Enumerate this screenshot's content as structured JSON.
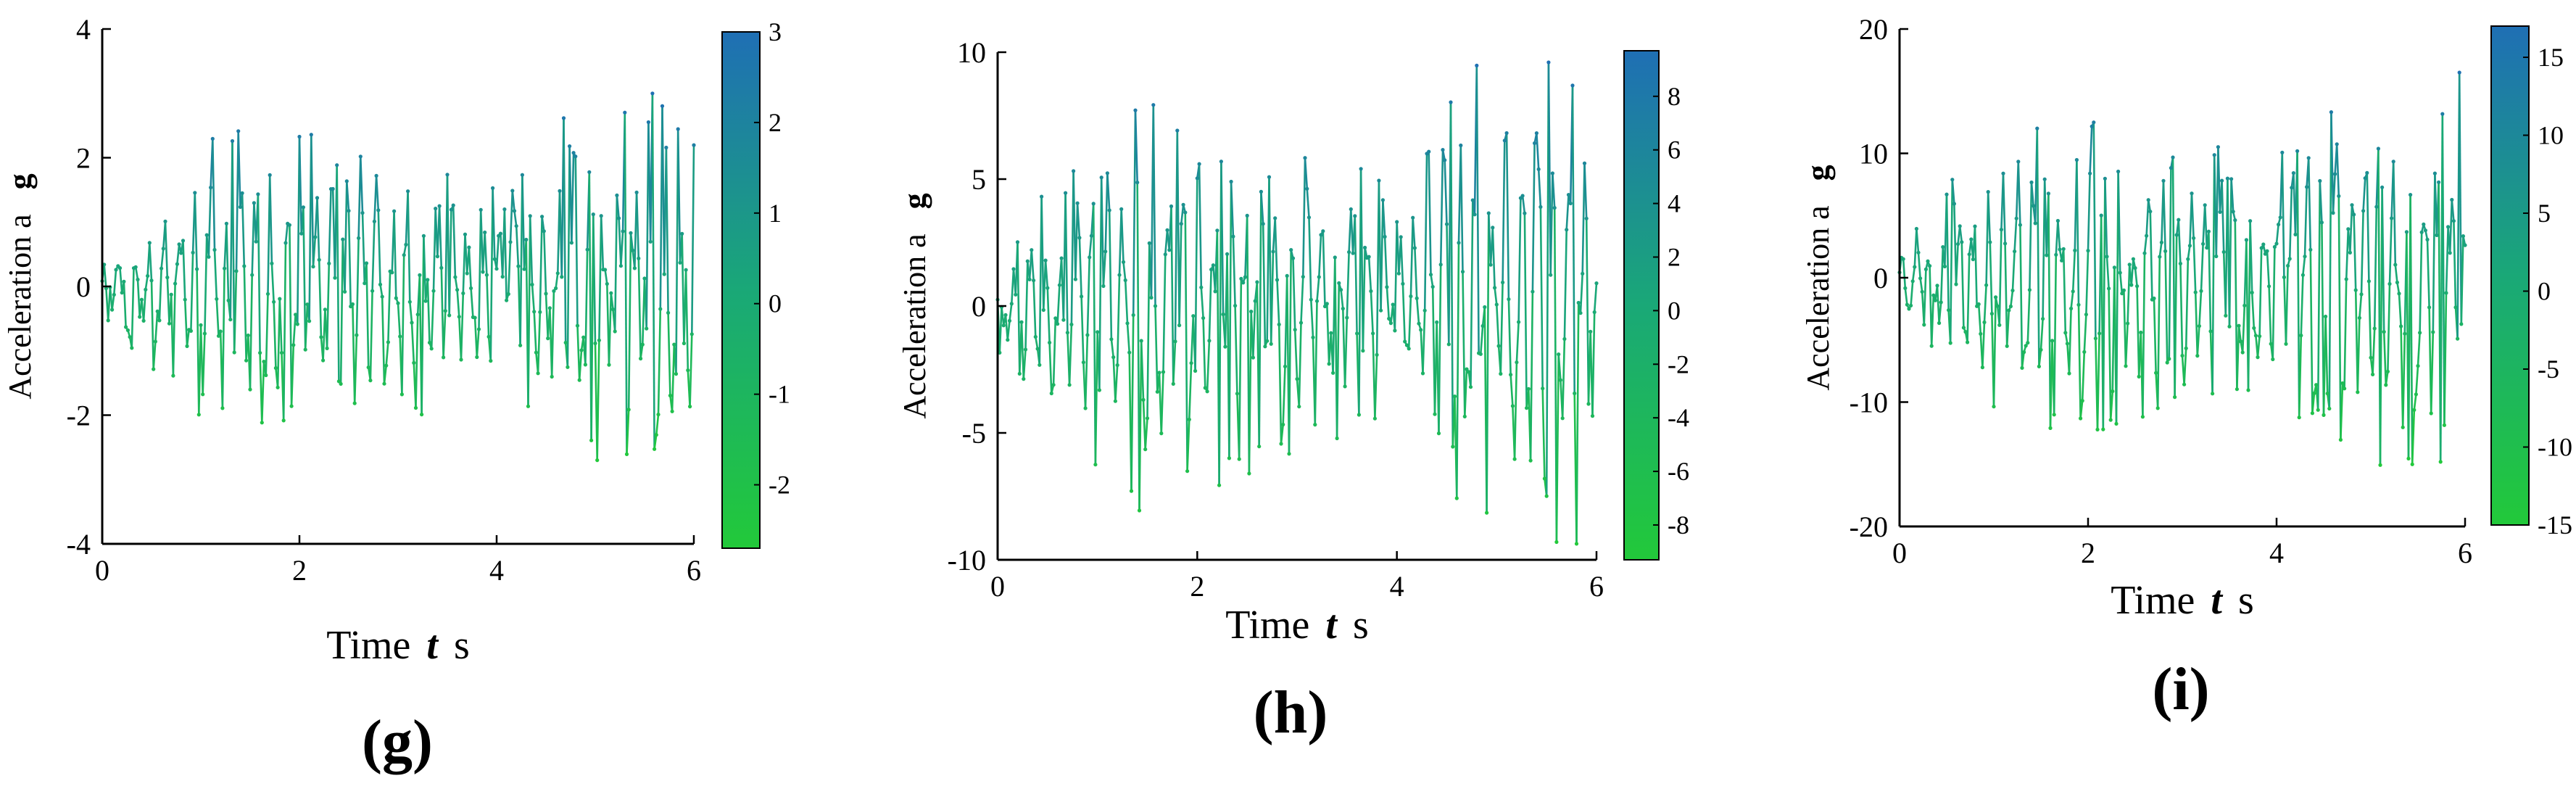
{
  "colors": {
    "colormap_low": "#22c93a",
    "colormap_mid": "#1aa877",
    "colormap_high": "#1f6fb4",
    "axis": "#000000",
    "background": "#ffffff"
  },
  "chart_data": [
    {
      "type": "line",
      "panel_label": "(g)",
      "title": "",
      "xlabel": {
        "main": "Time",
        "var": "t",
        "unit": "s"
      },
      "ylabel": {
        "main": "Acceleration a",
        "unit": "g"
      },
      "xlim": [
        0,
        6
      ],
      "ylim": [
        -4,
        4
      ],
      "xticks": [
        0,
        2,
        4,
        6
      ],
      "yticks": [
        -4,
        -2,
        0,
        2,
        4
      ],
      "ytick_labels": [
        "-4",
        "-2",
        "0",
        "2",
        "4"
      ],
      "colorbar": {
        "range": [
          -2.7,
          3
        ],
        "ticks": [
          -2,
          -1,
          0,
          1,
          2,
          3
        ],
        "tick_labels": [
          "-2",
          "-1",
          "0",
          "1",
          "2",
          "3"
        ]
      },
      "series": [
        {
          "name": "acceleration",
          "seed": 7,
          "dt": 0.02,
          "amplitude_envelope": [
            [
              0,
              0.5
            ],
            [
              0.5,
              1.1
            ],
            [
              1.2,
              2.0
            ],
            [
              3.0,
              1.8
            ],
            [
              4.0,
              1.2
            ],
            [
              5.0,
              2.6
            ],
            [
              6.0,
              2.6
            ]
          ],
          "peak_max": 3.0,
          "trough_min": -2.7
        }
      ]
    },
    {
      "type": "line",
      "panel_label": "(h)",
      "title": "",
      "xlabel": {
        "main": "Time",
        "var": "t",
        "unit": "s"
      },
      "ylabel": {
        "main": "Acceleration a",
        "unit": "g"
      },
      "xlim": [
        0,
        6
      ],
      "ylim": [
        -10,
        10
      ],
      "xticks": [
        0,
        2,
        4,
        6
      ],
      "yticks": [
        -10,
        -5,
        0,
        5,
        10
      ],
      "ytick_labels": [
        "-10",
        "-5",
        "0",
        "5",
        "10"
      ],
      "colorbar": {
        "range": [
          -9.3,
          9.7
        ],
        "ticks": [
          -8,
          -6,
          -4,
          -2,
          0,
          2,
          4,
          6,
          8
        ],
        "tick_labels": [
          "-8",
          "-6",
          "-4",
          "-2",
          "0",
          "2",
          "4",
          "6",
          "8"
        ]
      },
      "series": [
        {
          "name": "acceleration",
          "seed": 11,
          "dt": 0.02,
          "amplitude_envelope": [
            [
              0,
              1.5
            ],
            [
              0.5,
              4.0
            ],
            [
              1.4,
              6.5
            ],
            [
              3.0,
              5.0
            ],
            [
              4.0,
              4.5
            ],
            [
              5.0,
              8.5
            ],
            [
              6.0,
              8.0
            ]
          ],
          "peak_max": 9.6,
          "trough_min": -9.3
        }
      ]
    },
    {
      "type": "line",
      "panel_label": "(i)",
      "title": "",
      "xlabel": {
        "main": "Time",
        "var": "t",
        "unit": "s"
      },
      "ylabel": {
        "main": "Acceleration a",
        "unit": "g"
      },
      "xlim": [
        0,
        6
      ],
      "ylim": [
        -20,
        20
      ],
      "xticks": [
        0,
        2,
        4,
        6
      ],
      "yticks": [
        -20,
        -10,
        0,
        10,
        20
      ],
      "ytick_labels": [
        "-20",
        "-10",
        "0",
        "10",
        "20"
      ],
      "colorbar": {
        "range": [
          -15,
          17
        ],
        "ticks": [
          -15,
          -10,
          -5,
          0,
          5,
          10,
          15
        ],
        "tick_labels": [
          "-15",
          "-10",
          "-5",
          "0",
          "5",
          "10",
          "15"
        ]
      },
      "series": [
        {
          "name": "acceleration",
          "seed": 23,
          "dt": 0.02,
          "amplitude_envelope": [
            [
              0,
              2.5
            ],
            [
              0.5,
              6.0
            ],
            [
              1.2,
              11.0
            ],
            [
              3.0,
              9.0
            ],
            [
              4.0,
              8.0
            ],
            [
              5.0,
              13.0
            ],
            [
              6.0,
              14.0
            ]
          ],
          "peak_max": 16.5,
          "trough_min": -15.0
        }
      ]
    }
  ]
}
